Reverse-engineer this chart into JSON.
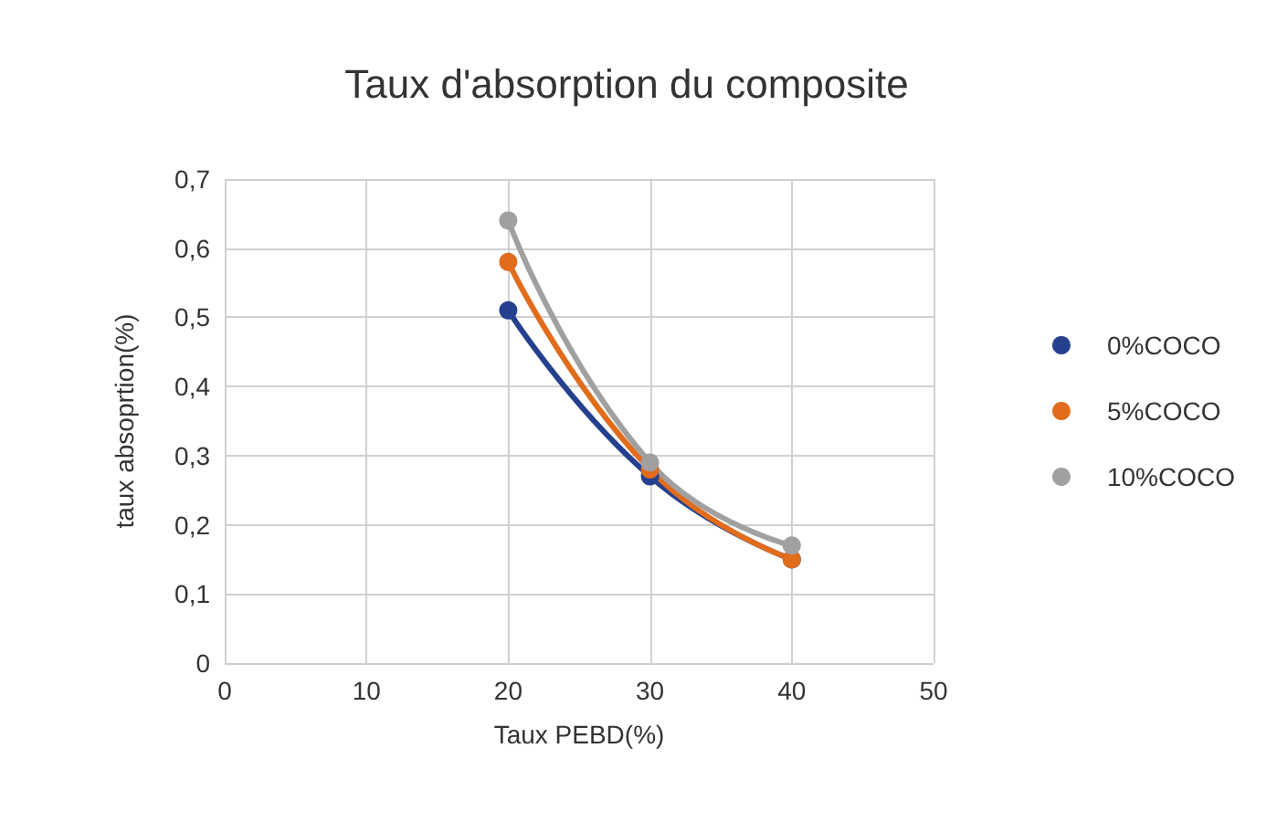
{
  "chart_data": {
    "type": "line",
    "title": "Taux d'absorption du composite",
    "xlabel": "Taux PEBD(%)",
    "ylabel": "taux absoprtion(%)",
    "x": [
      20,
      30,
      40
    ],
    "series": [
      {
        "name": "0%COCO",
        "color": "#24408e",
        "values": [
          0.51,
          0.27,
          0.15
        ]
      },
      {
        "name": "5%COCO",
        "color": "#e06c1c",
        "values": [
          0.58,
          0.28,
          0.15
        ]
      },
      {
        "name": "10%COCO",
        "color": "#a0a0a0",
        "values": [
          0.64,
          0.29,
          0.17
        ]
      }
    ],
    "xlim": [
      0,
      50
    ],
    "xticks": [
      0,
      10,
      20,
      30,
      40,
      50
    ],
    "ylim": [
      0,
      0.7
    ],
    "yticks": [
      0,
      {
        "value": 0.1,
        "label": "0,1"
      },
      {
        "value": 0.2,
        "label": "0,2"
      },
      {
        "value": 0.3,
        "label": "0,3"
      },
      {
        "value": 0.4,
        "label": "0,4"
      },
      {
        "value": 0.5,
        "label": "0,5"
      },
      {
        "value": 0.6,
        "label": "0,6"
      },
      {
        "value": 0.7,
        "label": "0,7"
      }
    ],
    "grid": true,
    "legend": "right",
    "marker": "circle",
    "line_style": "solid"
  }
}
